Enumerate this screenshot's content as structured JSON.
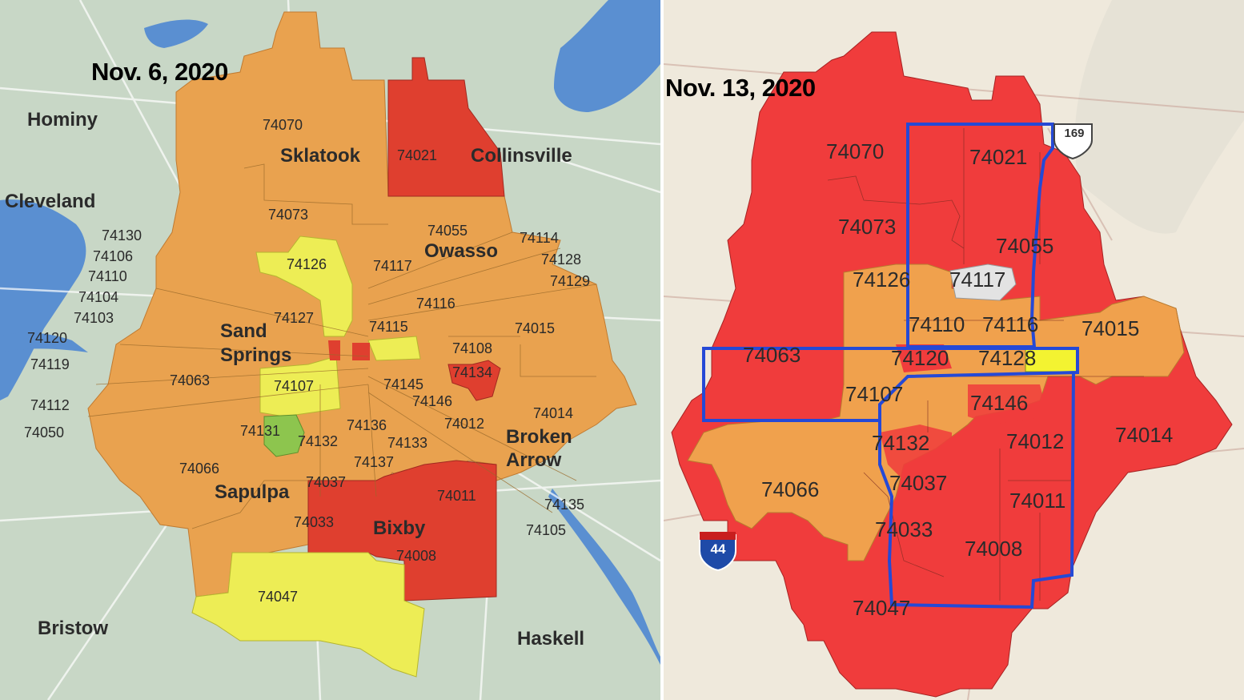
{
  "colors": {
    "map_bg_left": "#c8d7c6",
    "map_bg_right": "#efe9dc",
    "water": "#5a8fd1",
    "orange": "#e9a24f",
    "red_left": "#df3f2f",
    "yellow": "#eded55",
    "green": "#8dc54e",
    "red_right": "#f03c3c",
    "orange_right": "#f0a14d",
    "yellow_right": "#f3f331",
    "outline_blue": "#2549d6"
  },
  "left_map": {
    "date": "Nov. 6, 2020",
    "cities": [
      "Hominy",
      "Sklatook",
      "Collinsville",
      "Cleveland",
      "Owasso",
      "Sand",
      "Springs",
      "Broken",
      "Arrow",
      "Sapulpa",
      "Bixby",
      "Bristow",
      "Haskell"
    ],
    "zips": [
      "74070",
      "74021",
      "74073",
      "74055",
      "74130",
      "74114",
      "74106",
      "74128",
      "74110",
      "74126",
      "74117",
      "74129",
      "74104",
      "74116",
      "74103",
      "74127",
      "74115",
      "74015",
      "74120",
      "74108",
      "74119",
      "74134",
      "74063",
      "74107",
      "74145",
      "74146",
      "74112",
      "74012",
      "74014",
      "74050",
      "74131",
      "74136",
      "74132",
      "74133",
      "74066",
      "74137",
      "74037",
      "74011",
      "74135",
      "74033",
      "74105",
      "74008",
      "74047"
    ]
  },
  "right_map": {
    "date": "Nov. 13, 2020",
    "zips": [
      "74070",
      "74021",
      "74073",
      "74055",
      "74126",
      "74117",
      "74110",
      "74116",
      "74015",
      "74063",
      "74120",
      "74128",
      "74107",
      "74146",
      "74132",
      "74012",
      "74014",
      "74066",
      "74037",
      "74011",
      "74033",
      "74008",
      "74047"
    ],
    "shields": [
      "169",
      "44"
    ]
  }
}
